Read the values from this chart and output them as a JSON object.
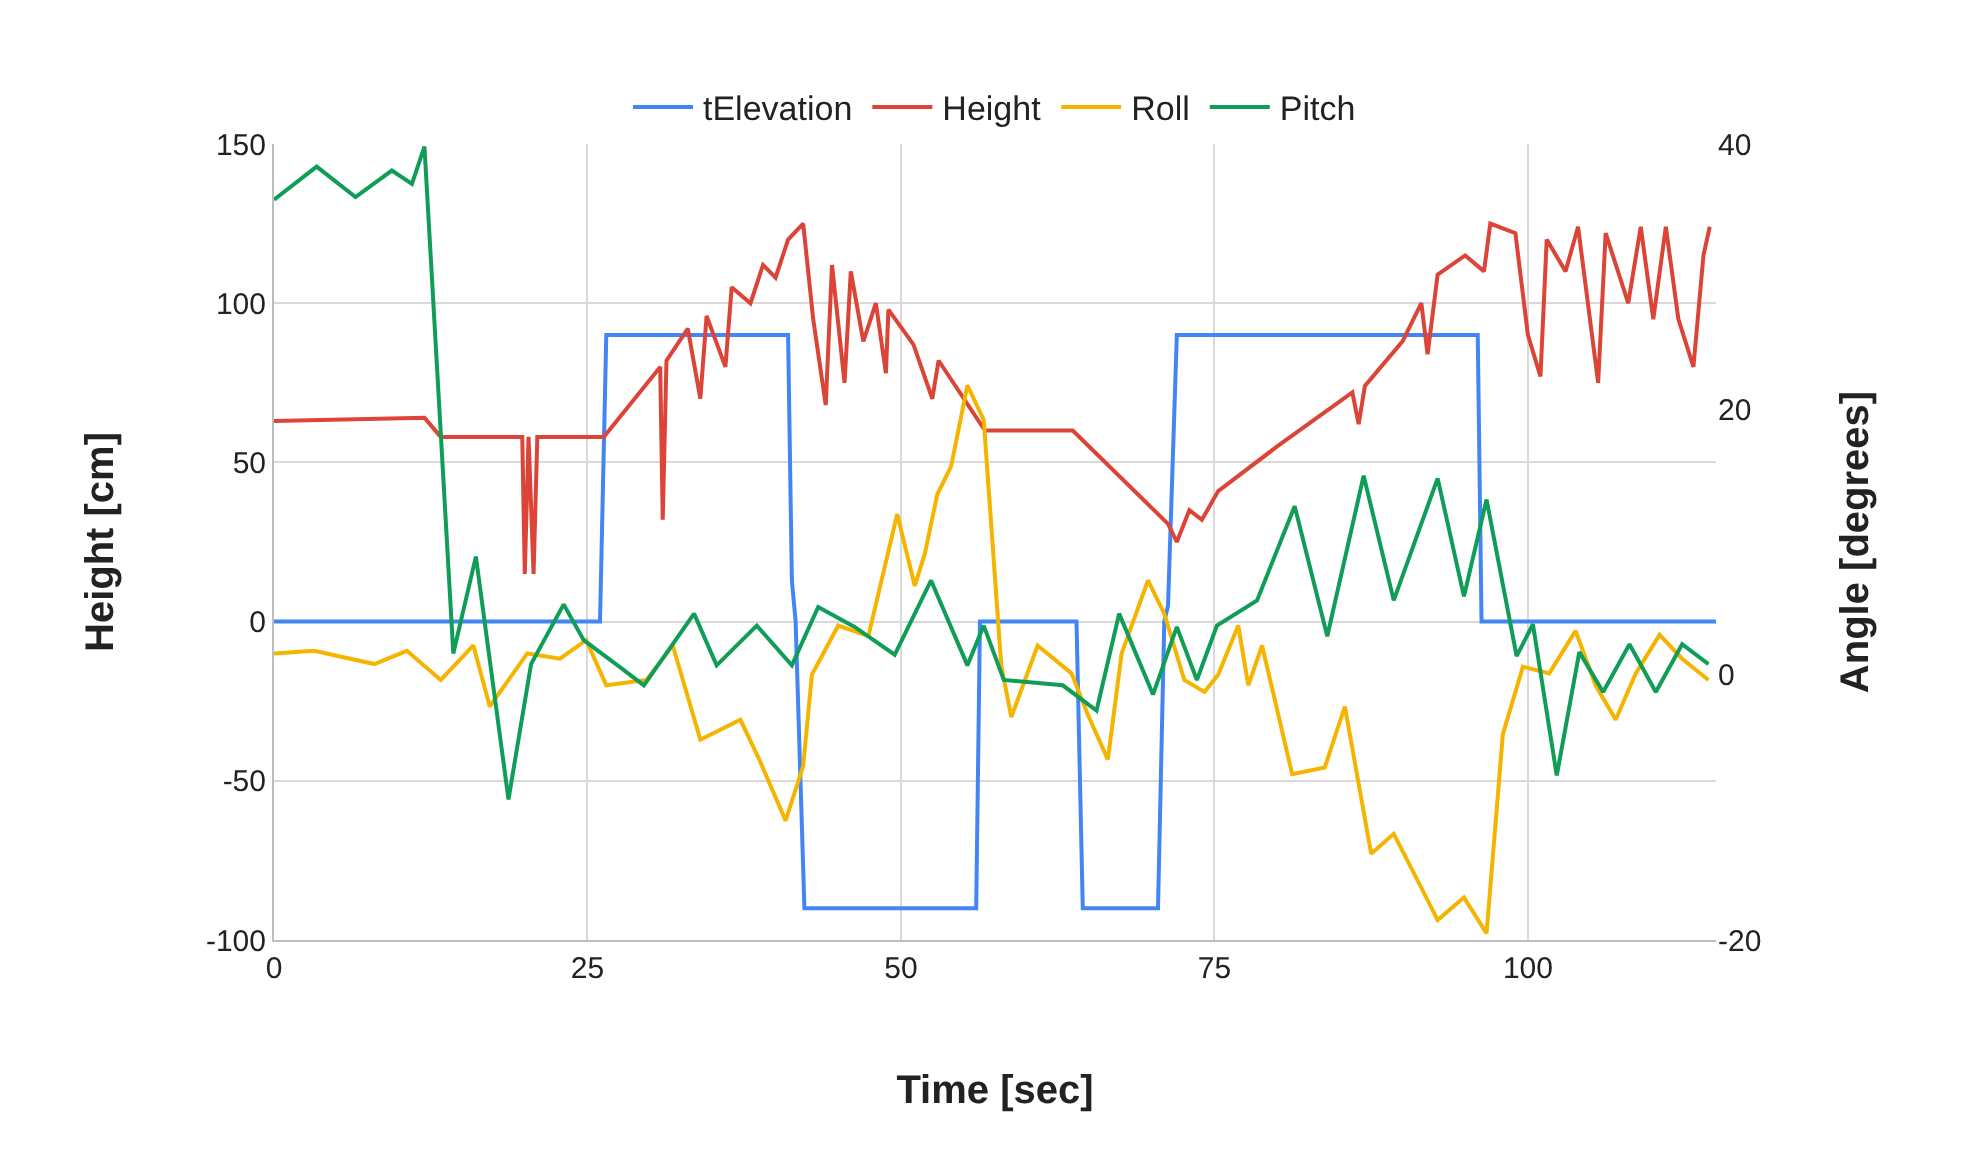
{
  "chart_data": {
    "type": "line",
    "xlabel": "Time [sec]",
    "ylabel": "Height [cm]",
    "y2label": "Angle [degrees]",
    "xlim": [
      0,
      115
    ],
    "xticks": [
      0,
      25,
      50,
      75,
      100
    ],
    "ylim": [
      -100,
      150
    ],
    "yticks": [
      -100,
      -50,
      0,
      50,
      100,
      150
    ],
    "y2lim": [
      -20,
      40
    ],
    "y2ticks": [
      -20,
      0,
      20,
      40
    ],
    "grid": true,
    "legend": "top",
    "marker": "none",
    "line_style": "solid",
    "series": [
      {
        "name": "tElevation",
        "color": "#4285f4",
        "x": [
          0,
          26,
          26.5,
          41,
          41.3,
          41.6,
          42.3,
          56,
          56.3,
          64,
          64.5,
          70.5,
          71,
          71.3,
          72,
          96,
          96.3,
          115
        ],
        "values": [
          0,
          0,
          90,
          90,
          13,
          0,
          -90,
          -90,
          0,
          0,
          -90,
          -90,
          0,
          5,
          90,
          90,
          0,
          0
        ]
      },
      {
        "name": "Height",
        "color": "#db4437",
        "x": [
          0,
          12,
          13.3,
          19.8,
          20,
          20.3,
          20.7,
          21,
          26.3,
          30.8,
          31,
          31.3,
          33,
          34,
          34.5,
          36,
          36.5,
          38,
          39,
          40,
          41,
          42.2,
          43,
          44,
          44.5,
          45.5,
          46,
          47,
          48,
          48.8,
          49,
          51,
          52.5,
          53,
          56.7,
          63.7,
          71.3,
          72,
          73,
          74,
          75.3,
          80,
          86,
          86.5,
          87,
          90,
          91.5,
          92,
          92.8,
          95,
          96.5,
          97,
          99,
          100,
          101,
          101.5,
          103,
          104,
          105.6,
          106.2,
          108,
          109,
          110,
          111,
          112,
          113.2,
          114,
          114.5
        ],
        "values": [
          63,
          64,
          58,
          58,
          15,
          58,
          15,
          58,
          58,
          80,
          32,
          82,
          92,
          70,
          96,
          80,
          105,
          100,
          112,
          108,
          120,
          125,
          95,
          68,
          112,
          75,
          110,
          88,
          100,
          78,
          98,
          87,
          70,
          82,
          60,
          60,
          30.7,
          25,
          35,
          32,
          41,
          55,
          72,
          62,
          74,
          88,
          100,
          84,
          109,
          115,
          110,
          125,
          122,
          90,
          77,
          120,
          110,
          124,
          75,
          122,
          100,
          124,
          95,
          124,
          95,
          80,
          115,
          124
        ]
      },
      {
        "name": "Roll",
        "color": "#f4b400",
        "axis": "y2",
        "x": [
          0,
          3.2,
          8,
          10.6,
          13.3,
          15.9,
          17.2,
          20.2,
          22.8,
          24.9,
          26.5,
          29.7,
          31.8,
          34,
          37.2,
          38.7,
          40.8,
          42.2,
          42.9,
          45,
          47.4,
          49.7,
          51.1,
          51.9,
          52.9,
          54,
          55.3,
          56.6,
          58,
          58.8,
          60.9,
          63.6,
          64.9,
          66.5,
          67.6,
          69.7,
          71,
          72.6,
          74.2,
          75.3,
          76.9,
          77.7,
          78.8,
          81.2,
          83.8,
          85.4,
          87.5,
          89.3,
          91.2,
          92.8,
          94.9,
          96.7,
          98,
          99.6,
          101.7,
          103.8,
          105.4,
          107,
          108.6,
          110.5,
          112.3,
          114.4
        ],
        "values": [
          1.6,
          1.8,
          0.8,
          1.8,
          -0.4,
          2.2,
          -2.4,
          1.6,
          1.2,
          2.6,
          -0.8,
          -0.4,
          2.2,
          -4.9,
          -3.4,
          -6.4,
          -11,
          -6.9,
          0,
          3.7,
          2.9,
          12.1,
          6.7,
          9.1,
          13.6,
          15.7,
          21.8,
          19.2,
          0.7,
          -3.2,
          2.2,
          0.1,
          -3,
          -6.4,
          1.6,
          7.1,
          4.6,
          -0.4,
          -1.3,
          0,
          3.7,
          -0.8,
          2.2,
          -7.5,
          -7,
          -2.4,
          -13.5,
          -12,
          -15.5,
          -18.5,
          -16.8,
          -19.5,
          -4.5,
          0.6,
          0.1,
          3.3,
          -0.8,
          -3.4,
          0.1,
          3,
          1.2,
          -0.4
        ]
      },
      {
        "name": "Pitch",
        "color": "#0f9d58",
        "axis": "y2",
        "x": [
          0,
          3.4,
          6.5,
          9.4,
          11,
          12,
          14.3,
          16.1,
          18.7,
          20.5,
          23.1,
          24.7,
          27.4,
          29.5,
          33.5,
          35.3,
          38.5,
          41.3,
          43.4,
          46.3,
          49.5,
          52.4,
          55.3,
          56.6,
          58.2,
          62.9,
          65.6,
          67.4,
          70.1,
          72,
          73.6,
          75.2,
          78.4,
          81.4,
          84,
          86.9,
          89.3,
          92.8,
          94.9,
          96.7,
          99.1,
          100.4,
          102.3,
          104.1,
          106,
          108.1,
          110.2,
          112.3,
          114.4
        ],
        "values": [
          35.8,
          38.3,
          36,
          38,
          37,
          39.8,
          1.6,
          8.9,
          -9.4,
          0.8,
          5.3,
          2.6,
          0.7,
          -0.8,
          4.6,
          0.7,
          3.7,
          0.7,
          5.1,
          3.6,
          1.5,
          7.1,
          0.7,
          3.7,
          -0.4,
          -0.8,
          -2.7,
          4.6,
          -1.5,
          3.6,
          -0.4,
          3.7,
          5.6,
          12.7,
          2.9,
          15,
          5.6,
          14.8,
          5.9,
          13.2,
          1.4,
          3.8,
          -7.6,
          1.7,
          -1.3,
          2.3,
          -1.3,
          2.3,
          0.8
        ]
      }
    ]
  }
}
